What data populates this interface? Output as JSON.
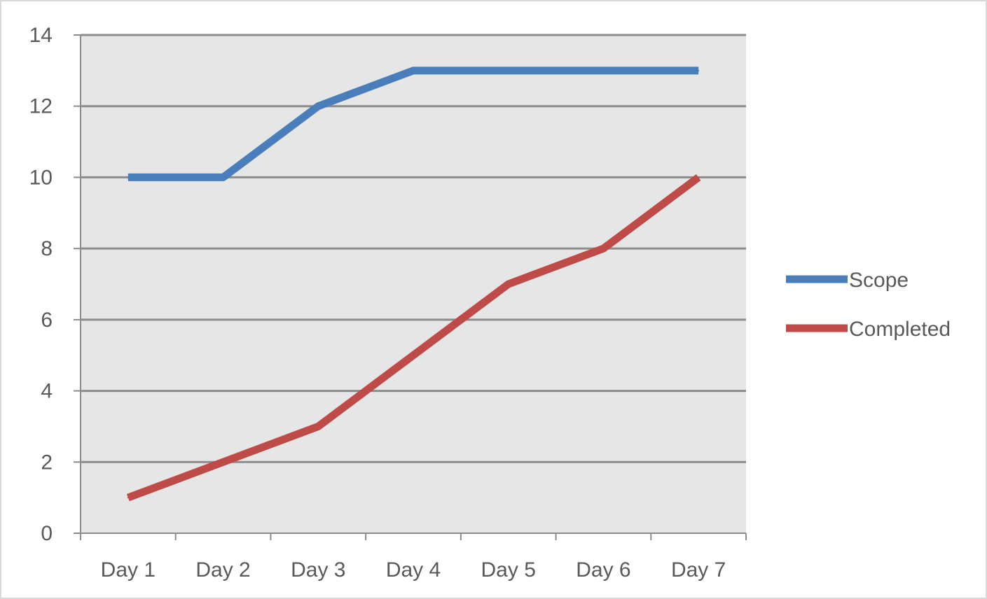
{
  "chart_data": {
    "type": "line",
    "title": "",
    "xlabel": "",
    "ylabel": "",
    "categories": [
      "Day 1",
      "Day 2",
      "Day 3",
      "Day 4",
      "Day 5",
      "Day 6",
      "Day 7"
    ],
    "ylim": [
      0,
      14
    ],
    "yticks": [
      "0",
      "2",
      "4",
      "6",
      "8",
      "10",
      "12",
      "14"
    ],
    "grid": true,
    "legend_position": "right",
    "plot_background": "#e6e6e6",
    "series": [
      {
        "name": "Scope",
        "color": "#4a7ebb",
        "values": [
          10,
          10,
          12,
          13,
          13,
          13,
          13
        ]
      },
      {
        "name": "Completed",
        "color": "#be4b48",
        "values": [
          1,
          2,
          3,
          5,
          7,
          8,
          10
        ]
      }
    ]
  }
}
